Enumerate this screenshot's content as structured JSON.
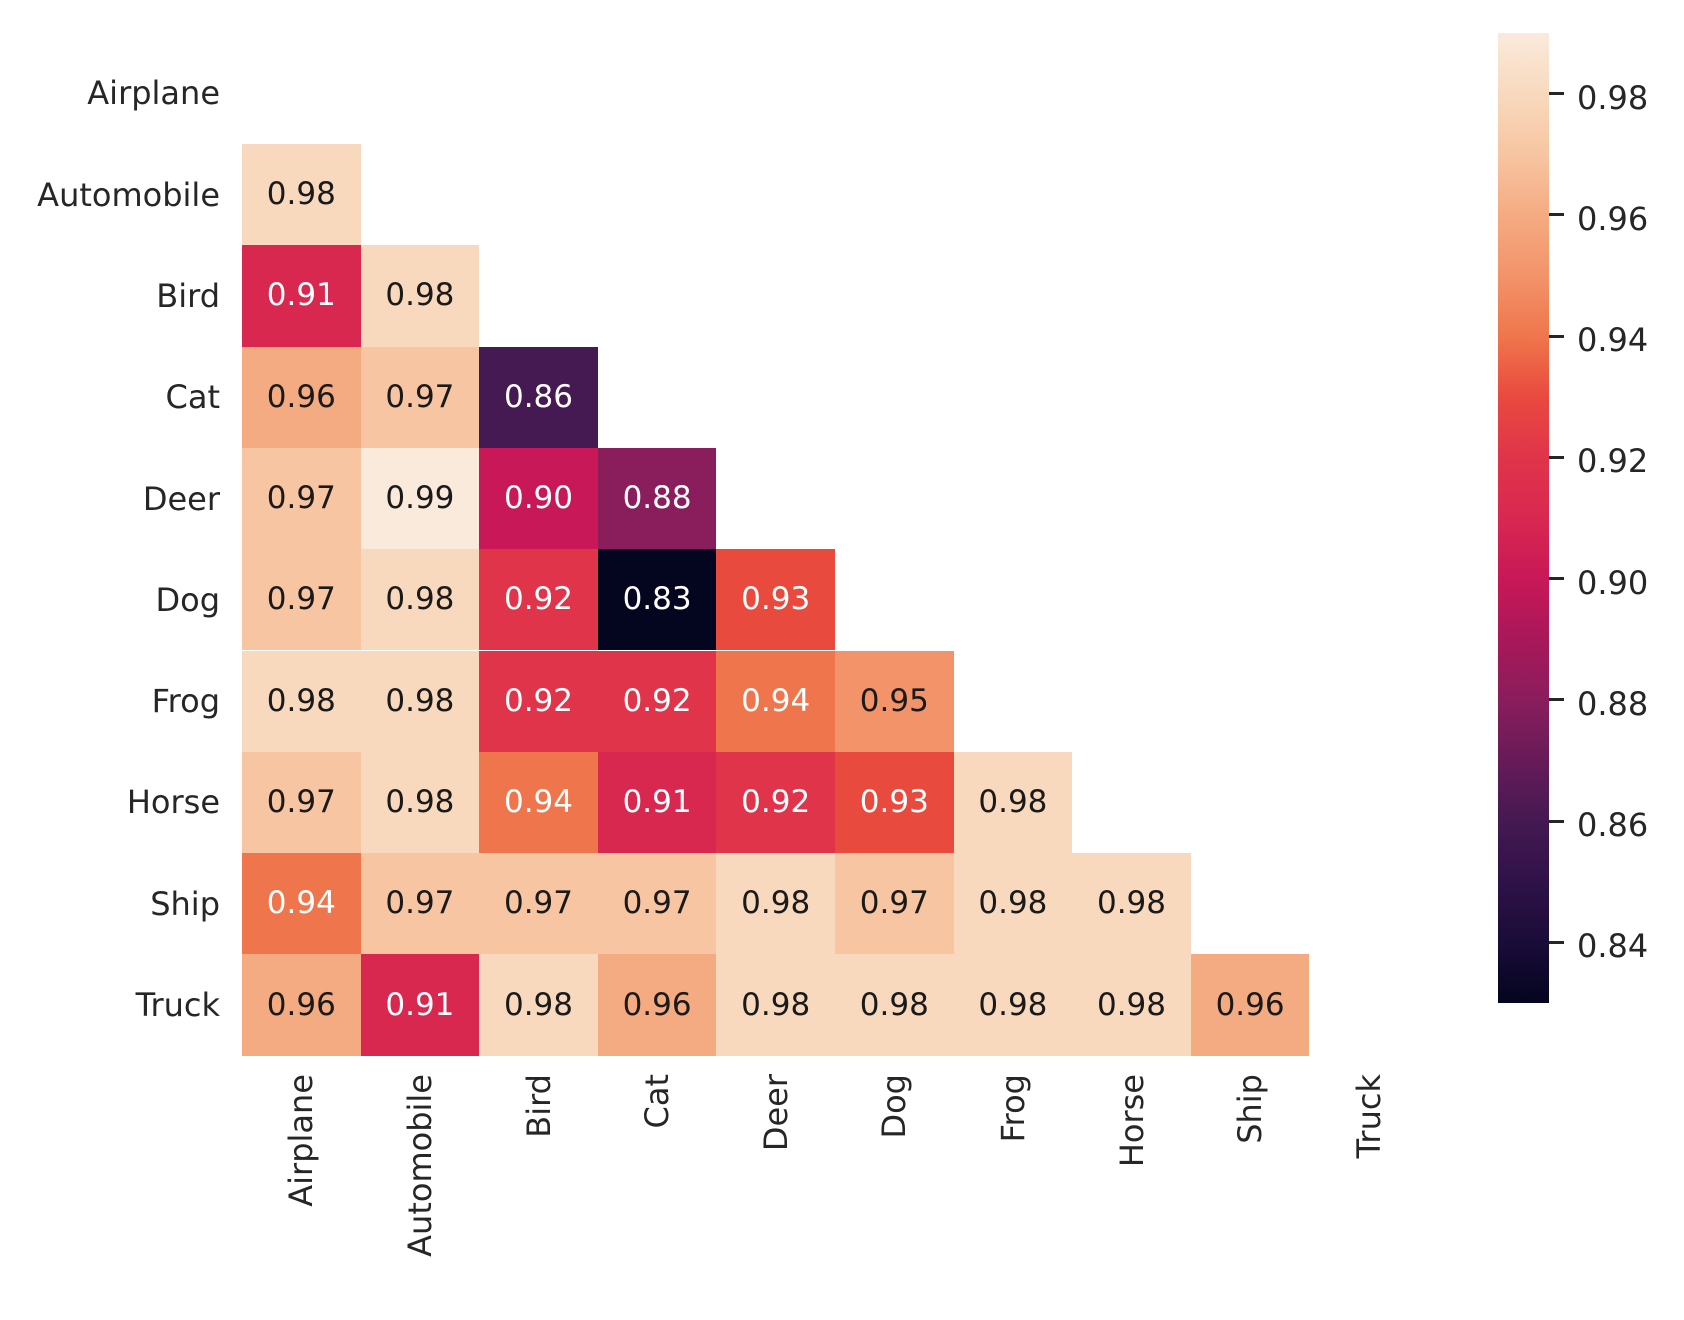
{
  "figure": {
    "background": "#ffffff"
  },
  "chart_data": {
    "type": "heatmap",
    "title": "",
    "xlabel": "",
    "ylabel": "",
    "categories": [
      "Airplane",
      "Automobile",
      "Bird",
      "Cat",
      "Deer",
      "Dog",
      "Frog",
      "Horse",
      "Ship",
      "Truck"
    ],
    "mask": "upper-triangle-and-diagonal-hidden",
    "rows": [
      {
        "label": "Airplane",
        "values": []
      },
      {
        "label": "Automobile",
        "values": [
          0.98
        ]
      },
      {
        "label": "Bird",
        "values": [
          0.91,
          0.98
        ]
      },
      {
        "label": "Cat",
        "values": [
          0.96,
          0.97,
          0.86
        ]
      },
      {
        "label": "Deer",
        "values": [
          0.97,
          0.99,
          0.9,
          0.88
        ]
      },
      {
        "label": "Dog",
        "values": [
          0.97,
          0.98,
          0.92,
          0.83,
          0.93
        ]
      },
      {
        "label": "Frog",
        "values": [
          0.98,
          0.98,
          0.92,
          0.92,
          0.94,
          0.95
        ]
      },
      {
        "label": "Horse",
        "values": [
          0.97,
          0.98,
          0.94,
          0.91,
          0.92,
          0.93,
          0.98
        ]
      },
      {
        "label": "Ship",
        "values": [
          0.94,
          0.97,
          0.97,
          0.97,
          0.98,
          0.97,
          0.98,
          0.98
        ]
      },
      {
        "label": "Truck",
        "values": [
          0.96,
          0.91,
          0.98,
          0.96,
          0.98,
          0.98,
          0.98,
          0.98,
          0.96
        ]
      }
    ],
    "value_decimals": 2,
    "vmin": 0.83,
    "vmax": 0.99,
    "colormap_name": "rocket",
    "value_colors": {
      "0.83": "#04051E",
      "0.84": "#1A0C38",
      "0.85": "#2F1248",
      "0.86": "#451952",
      "0.87": "#671B58",
      "0.88": "#8A1D5C",
      "0.89": "#A9185A",
      "0.90": "#C81857",
      "0.91": "#D92850",
      "0.92": "#E0344A",
      "0.93": "#E94A3E",
      "0.94": "#EF764C",
      "0.95": "#F3936A",
      "0.96": "#F5AB82",
      "0.97": "#F7C5A2",
      "0.98": "#F8D9BE",
      "0.99": "#FAEADC"
    },
    "annotation_colors": {
      "light": "#FFFFFF",
      "dark": "#1A1A1A"
    },
    "white_text_max_value": 0.945,
    "axis_tick_color": "#262626",
    "x_tick_rotation": 90,
    "grid": false,
    "colorbar": {
      "position": "right",
      "ticks": [
        0.98,
        0.96,
        0.94,
        0.92,
        0.9,
        0.88,
        0.86,
        0.84
      ]
    }
  }
}
